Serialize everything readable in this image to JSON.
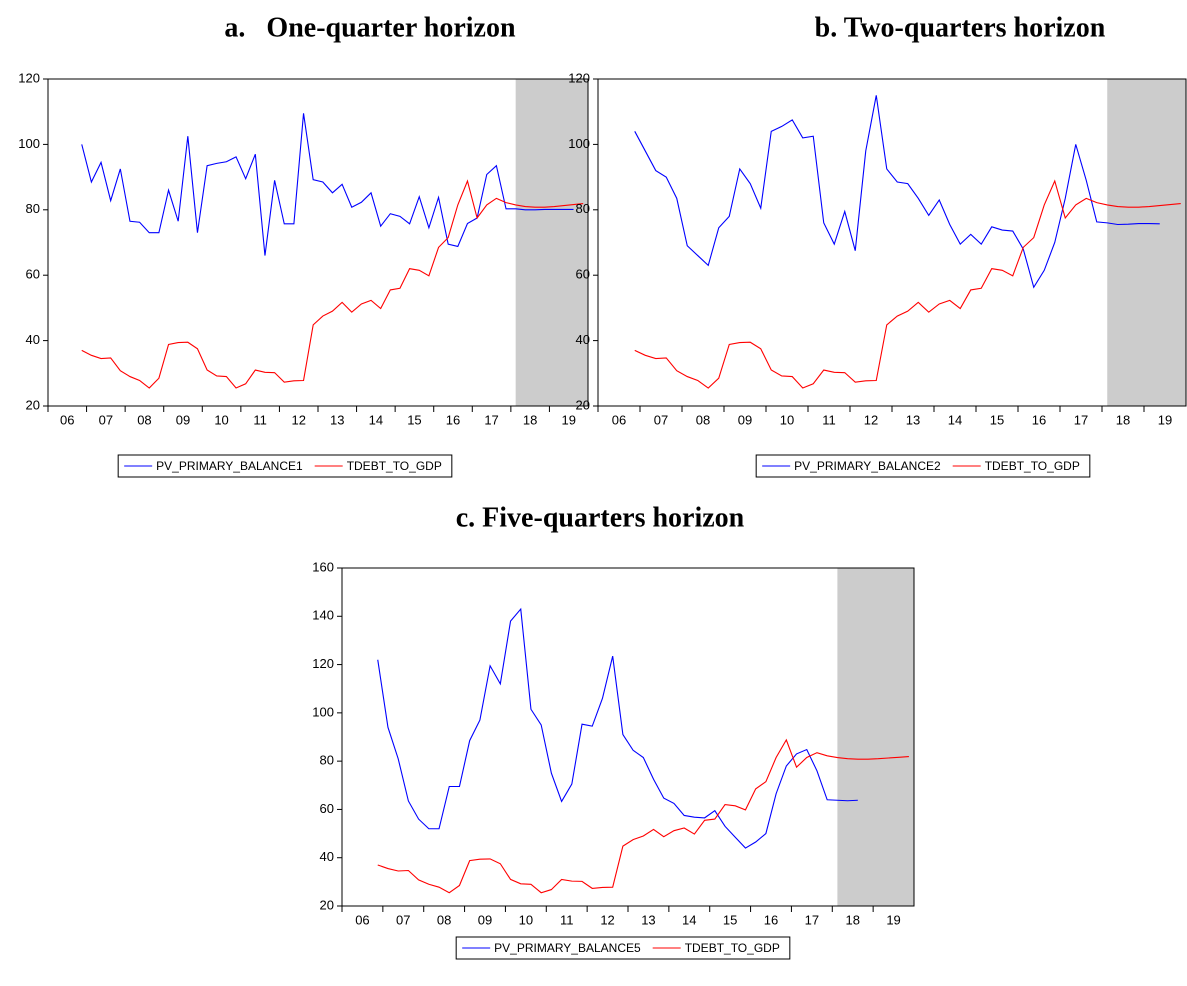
{
  "chart_data": [
    {
      "type": "line",
      "title": "a.   One-quarter horizon",
      "x": [
        6.875,
        7.125,
        7.375,
        7.625,
        7.875,
        8.125,
        8.375,
        8.625,
        8.875,
        9.125,
        9.375,
        9.625,
        9.875,
        10.125,
        10.375,
        10.625,
        10.875,
        11.125,
        11.375,
        11.625,
        11.875,
        12.125,
        12.375,
        12.625,
        12.875,
        13.125,
        13.375,
        13.625,
        13.875,
        14.125,
        14.375,
        14.625,
        14.875,
        15.125,
        15.375,
        15.625,
        15.875,
        16.125,
        16.375,
        16.625,
        16.875,
        17.125,
        17.375,
        17.625,
        17.875,
        18.125,
        18.375,
        18.625,
        18.875,
        19.125,
        19.375,
        19.625,
        19.875
      ],
      "xlim": [
        6,
        20
      ],
      "xticks": [
        {
          "value": 6,
          "label": "06"
        },
        {
          "value": 7,
          "label": "07"
        },
        {
          "value": 8,
          "label": "08"
        },
        {
          "value": 9,
          "label": "09"
        },
        {
          "value": 10,
          "label": "10"
        },
        {
          "value": 11,
          "label": "11"
        },
        {
          "value": 12,
          "label": "12"
        },
        {
          "value": 13,
          "label": "13"
        },
        {
          "value": 14,
          "label": "14"
        },
        {
          "value": 15,
          "label": "15"
        },
        {
          "value": 16,
          "label": "16"
        },
        {
          "value": 17,
          "label": "17"
        },
        {
          "value": 18,
          "label": "18"
        },
        {
          "value": 19,
          "label": "19"
        }
      ],
      "ylim": [
        20,
        120
      ],
      "yticks": [
        20,
        40,
        60,
        80,
        100,
        120
      ],
      "shaded_region": [
        18.125,
        20
      ],
      "shade_color": "#cccccc",
      "series": [
        {
          "name": "PV_PRIMARY_BALANCE1",
          "color": "#0000ff",
          "values": [
            100,
            88.5,
            94.5,
            82.8,
            92.5,
            76.5,
            76.2,
            73,
            73,
            86,
            76.5,
            102.5,
            73,
            93.5,
            94.2,
            94.7,
            96.2,
            89.5,
            97,
            66,
            89,
            75.7,
            75.7,
            109.5,
            89.2,
            88.5,
            85.2,
            87.8,
            80.8,
            82.3,
            85.2,
            75,
            78.8,
            78,
            75.7,
            84,
            74.5,
            83.8,
            69.5,
            68.8,
            75.8,
            77.5,
            90.8,
            93.5,
            80.3,
            80.3,
            80,
            80,
            80.1,
            80.1,
            80.1,
            80.1,
            null
          ]
        },
        {
          "name": "TDEBT_TO_GDP",
          "color": "#ff0000",
          "values": [
            37,
            35.5,
            34.5,
            34.7,
            30.8,
            29,
            27.8,
            25.5,
            28.5,
            38.8,
            39.4,
            39.5,
            37.5,
            31,
            29.2,
            29,
            25.5,
            26.8,
            31,
            30.3,
            30.2,
            27.3,
            27.7,
            27.8,
            44.8,
            47.5,
            49,
            51.7,
            48.7,
            51.2,
            52.3,
            49.8,
            55.5,
            56,
            62,
            61.5,
            59.8,
            68.5,
            71.5,
            81.5,
            88.8,
            77.5,
            81.5,
            83.5,
            82.2,
            81.5,
            81,
            80.8,
            80.8,
            81,
            81.3,
            81.6,
            81.9
          ]
        }
      ]
    },
    {
      "type": "line",
      "title": "b. Two-quarters horizon",
      "x": [
        6.875,
        7.125,
        7.375,
        7.625,
        7.875,
        8.125,
        8.375,
        8.625,
        8.875,
        9.125,
        9.375,
        9.625,
        9.875,
        10.125,
        10.375,
        10.625,
        10.875,
        11.125,
        11.375,
        11.625,
        11.875,
        12.125,
        12.375,
        12.625,
        12.875,
        13.125,
        13.375,
        13.625,
        13.875,
        14.125,
        14.375,
        14.625,
        14.875,
        15.125,
        15.375,
        15.625,
        15.875,
        16.125,
        16.375,
        16.625,
        16.875,
        17.125,
        17.375,
        17.625,
        17.875,
        18.125,
        18.375,
        18.625,
        18.875,
        19.125,
        19.375,
        19.625,
        19.875
      ],
      "xlim": [
        6,
        20
      ],
      "xticks": [
        {
          "value": 6,
          "label": "06"
        },
        {
          "value": 7,
          "label": "07"
        },
        {
          "value": 8,
          "label": "08"
        },
        {
          "value": 9,
          "label": "09"
        },
        {
          "value": 10,
          "label": "10"
        },
        {
          "value": 11,
          "label": "11"
        },
        {
          "value": 12,
          "label": "12"
        },
        {
          "value": 13,
          "label": "13"
        },
        {
          "value": 14,
          "label": "14"
        },
        {
          "value": 15,
          "label": "15"
        },
        {
          "value": 16,
          "label": "16"
        },
        {
          "value": 17,
          "label": "17"
        },
        {
          "value": 18,
          "label": "18"
        },
        {
          "value": 19,
          "label": "19"
        }
      ],
      "ylim": [
        20,
        120
      ],
      "yticks": [
        20,
        40,
        60,
        80,
        100,
        120
      ],
      "shaded_region": [
        18.125,
        20
      ],
      "shade_color": "#cccccc",
      "series": [
        {
          "name": "PV_PRIMARY_BALANCE2",
          "color": "#0000ff",
          "values": [
            104,
            98,
            92,
            90,
            83.5,
            69,
            66,
            63,
            74.5,
            78,
            92.5,
            88,
            80.5,
            104,
            105.5,
            107.5,
            102,
            102.5,
            76,
            69.5,
            79.5,
            67.5,
            98,
            115,
            92.5,
            88.5,
            88,
            83.5,
            78.3,
            83,
            75.5,
            69.5,
            72.5,
            69.5,
            74.8,
            73.8,
            73.5,
            68,
            56.3,
            61.5,
            70,
            83.5,
            100,
            89,
            76.3,
            76,
            75.5,
            75.6,
            75.8,
            75.8,
            75.7,
            null,
            null
          ]
        },
        {
          "name": "TDEBT_TO_GDP",
          "color": "#ff0000",
          "values": [
            37,
            35.5,
            34.5,
            34.7,
            30.8,
            29,
            27.8,
            25.5,
            28.5,
            38.8,
            39.4,
            39.5,
            37.5,
            31,
            29.2,
            29,
            25.5,
            26.8,
            31,
            30.3,
            30.2,
            27.3,
            27.7,
            27.8,
            44.8,
            47.5,
            49,
            51.7,
            48.7,
            51.2,
            52.3,
            49.8,
            55.5,
            56,
            62,
            61.5,
            59.8,
            68.5,
            71.5,
            81.5,
            88.8,
            77.5,
            81.5,
            83.5,
            82.2,
            81.5,
            81,
            80.8,
            80.8,
            81,
            81.3,
            81.6,
            81.9
          ]
        }
      ]
    },
    {
      "type": "line",
      "title": "c. Five-quarters horizon",
      "x": [
        6.875,
        7.125,
        7.375,
        7.625,
        7.875,
        8.125,
        8.375,
        8.625,
        8.875,
        9.125,
        9.375,
        9.625,
        9.875,
        10.125,
        10.375,
        10.625,
        10.875,
        11.125,
        11.375,
        11.625,
        11.875,
        12.125,
        12.375,
        12.625,
        12.875,
        13.125,
        13.375,
        13.625,
        13.875,
        14.125,
        14.375,
        14.625,
        14.875,
        15.125,
        15.375,
        15.625,
        15.875,
        16.125,
        16.375,
        16.625,
        16.875,
        17.125,
        17.375,
        17.625,
        17.875,
        18.125,
        18.375,
        18.625,
        18.875,
        19.125,
        19.375,
        19.625,
        19.875
      ],
      "xlim": [
        6,
        20
      ],
      "xticks": [
        {
          "value": 6,
          "label": "06"
        },
        {
          "value": 7,
          "label": "07"
        },
        {
          "value": 8,
          "label": "08"
        },
        {
          "value": 9,
          "label": "09"
        },
        {
          "value": 10,
          "label": "10"
        },
        {
          "value": 11,
          "label": "11"
        },
        {
          "value": 12,
          "label": "12"
        },
        {
          "value": 13,
          "label": "13"
        },
        {
          "value": 14,
          "label": "14"
        },
        {
          "value": 15,
          "label": "15"
        },
        {
          "value": 16,
          "label": "16"
        },
        {
          "value": 17,
          "label": "17"
        },
        {
          "value": 18,
          "label": "18"
        },
        {
          "value": 19,
          "label": "19"
        }
      ],
      "ylim": [
        20,
        160
      ],
      "yticks": [
        20,
        40,
        60,
        80,
        100,
        120,
        140,
        160
      ],
      "shaded_region": [
        18.125,
        20
      ],
      "shade_color": "#cccccc",
      "series": [
        {
          "name": "PV_PRIMARY_BALANCE5",
          "color": "#0000ff",
          "values": [
            122,
            94,
            81,
            63.5,
            56,
            52,
            52,
            69.5,
            69.5,
            88.5,
            97,
            119.5,
            112,
            138,
            143,
            101.5,
            95,
            75,
            63.3,
            70.5,
            95.3,
            94.5,
            106,
            123.5,
            91,
            84.5,
            81.5,
            72.5,
            64.7,
            62.5,
            57.5,
            56.8,
            56.5,
            59.5,
            53,
            48.5,
            44,
            46.5,
            50,
            66.5,
            78,
            83,
            84.8,
            76,
            64,
            63.8,
            63.6,
            63.8,
            null,
            null,
            null,
            null,
            null
          ]
        },
        {
          "name": "TDEBT_TO_GDP",
          "color": "#ff0000",
          "values": [
            37,
            35.5,
            34.5,
            34.7,
            30.8,
            29,
            27.8,
            25.5,
            28.5,
            38.8,
            39.4,
            39.5,
            37.5,
            31,
            29.2,
            29,
            25.5,
            26.8,
            31,
            30.3,
            30.2,
            27.3,
            27.7,
            27.8,
            44.8,
            47.5,
            49,
            51.7,
            48.7,
            51.2,
            52.3,
            49.8,
            55.5,
            56,
            62,
            61.5,
            59.8,
            68.5,
            71.5,
            81.5,
            88.8,
            77.5,
            81.5,
            83.5,
            82.2,
            81.5,
            81,
            80.8,
            80.8,
            81,
            81.3,
            81.6,
            81.9
          ]
        }
      ]
    }
  ]
}
